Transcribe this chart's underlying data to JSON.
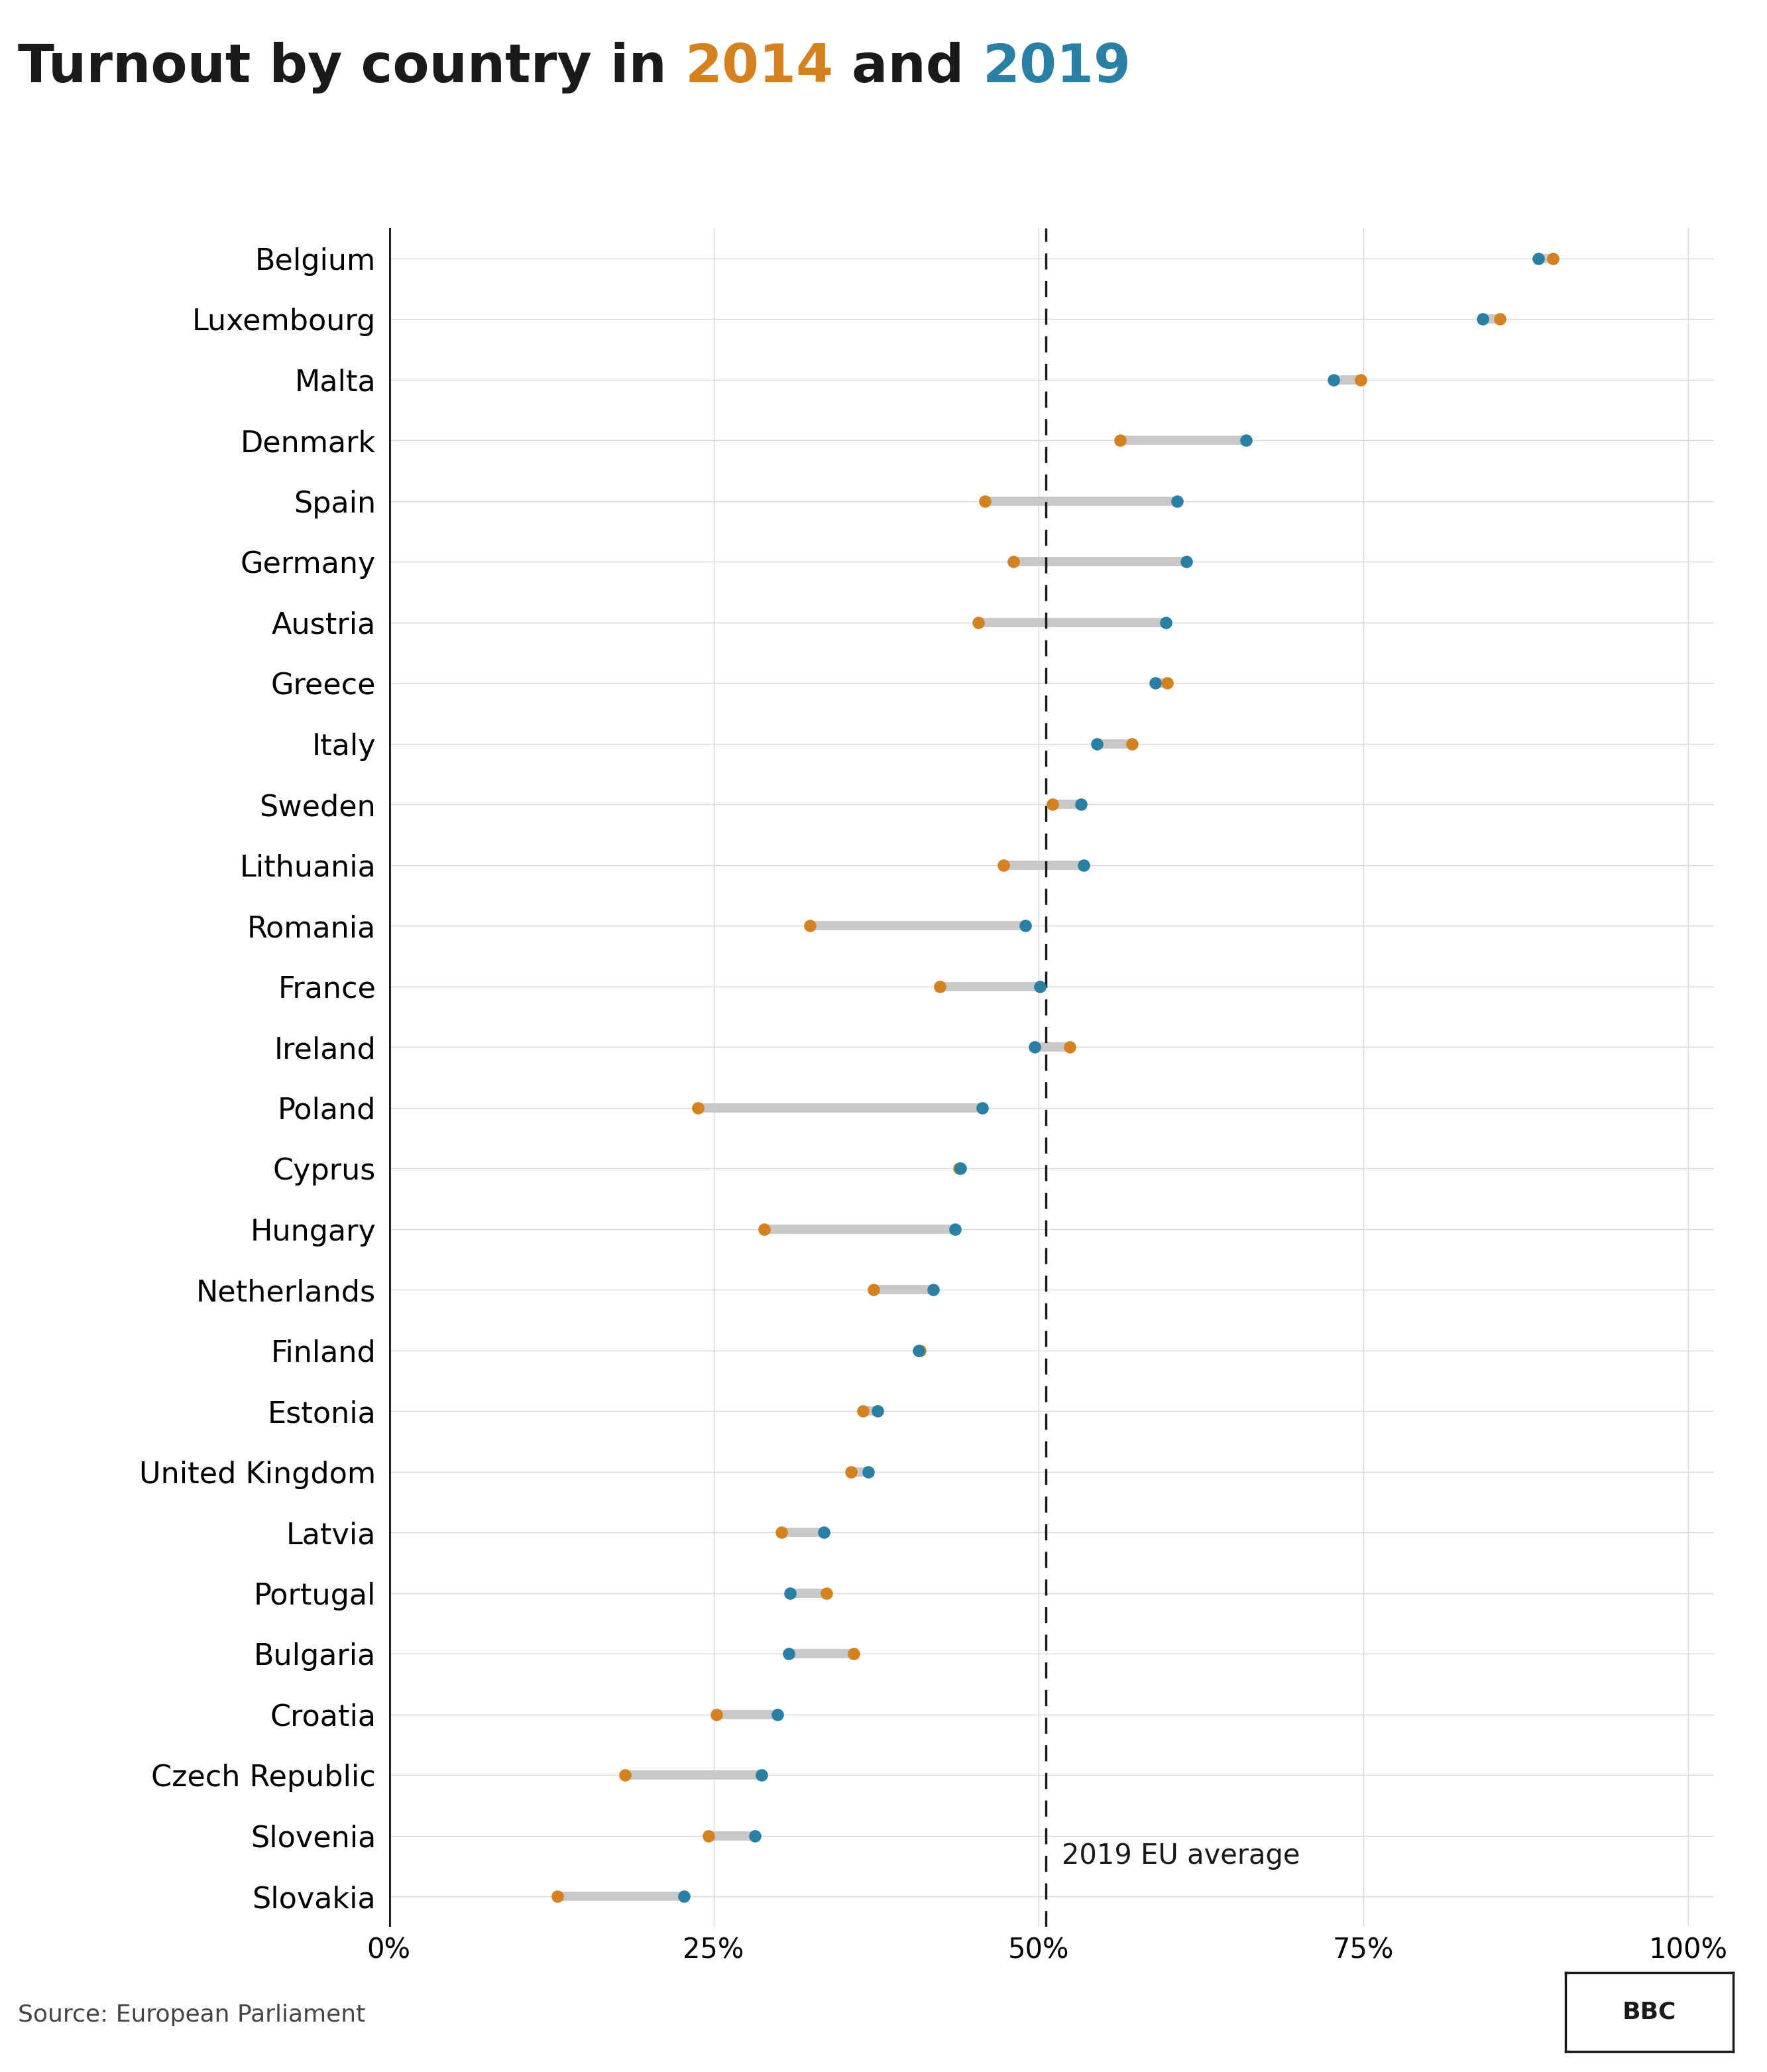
{
  "title_parts": [
    {
      "text": "Turnout by country in ",
      "color": "#1a1a1a"
    },
    {
      "text": "2014",
      "color": "#d4821f"
    },
    {
      "text": " and ",
      "color": "#1a1a1a"
    },
    {
      "text": "2019",
      "color": "#2a7fa5"
    }
  ],
  "eu_average_line": 50.6,
  "eu_average_label": "2019 EU average",
  "color_2014": "#d4821f",
  "color_2019": "#2a7fa5",
  "connector_color": "#c8c8c8",
  "countries": [
    "Belgium",
    "Luxembourg",
    "Malta",
    "Denmark",
    "Spain",
    "Germany",
    "Austria",
    "Greece",
    "Italy",
    "Sweden",
    "Lithuania",
    "Romania",
    "France",
    "Ireland",
    "Poland",
    "Cyprus",
    "Hungary",
    "Netherlands",
    "Finland",
    "Estonia",
    "United Kingdom",
    "Latvia",
    "Portugal",
    "Bulgaria",
    "Croatia",
    "Czech Republic",
    "Slovenia",
    "Slovakia"
  ],
  "values_2014": [
    89.6,
    85.5,
    74.8,
    56.3,
    45.9,
    48.1,
    45.4,
    59.9,
    57.2,
    51.1,
    47.3,
    32.4,
    42.4,
    52.4,
    23.8,
    43.9,
    28.9,
    37.3,
    40.9,
    36.5,
    35.6,
    30.2,
    33.7,
    35.8,
    25.2,
    18.2,
    24.6,
    13.0
  ],
  "values_2019": [
    88.5,
    84.2,
    72.7,
    66.0,
    60.7,
    61.4,
    59.8,
    59.0,
    54.5,
    53.3,
    53.5,
    49.0,
    50.1,
    49.7,
    45.7,
    44.0,
    43.6,
    41.9,
    40.8,
    37.6,
    36.9,
    33.5,
    30.9,
    30.8,
    29.9,
    28.7,
    28.2,
    22.7
  ],
  "source_text": "Source: European Parliament",
  "xlabel_ticks": [
    "0%",
    "25%",
    "50%",
    "75%",
    "100%"
  ],
  "xlabel_values": [
    0,
    25,
    50,
    75,
    100
  ],
  "xlim": [
    0,
    102
  ],
  "background_color": "#ffffff",
  "grid_color": "#d8d8d8",
  "title_fontsize": 58,
  "label_fontsize": 32,
  "tick_fontsize": 30,
  "source_fontsize": 26,
  "dot_size": 180,
  "connector_lw": 10
}
